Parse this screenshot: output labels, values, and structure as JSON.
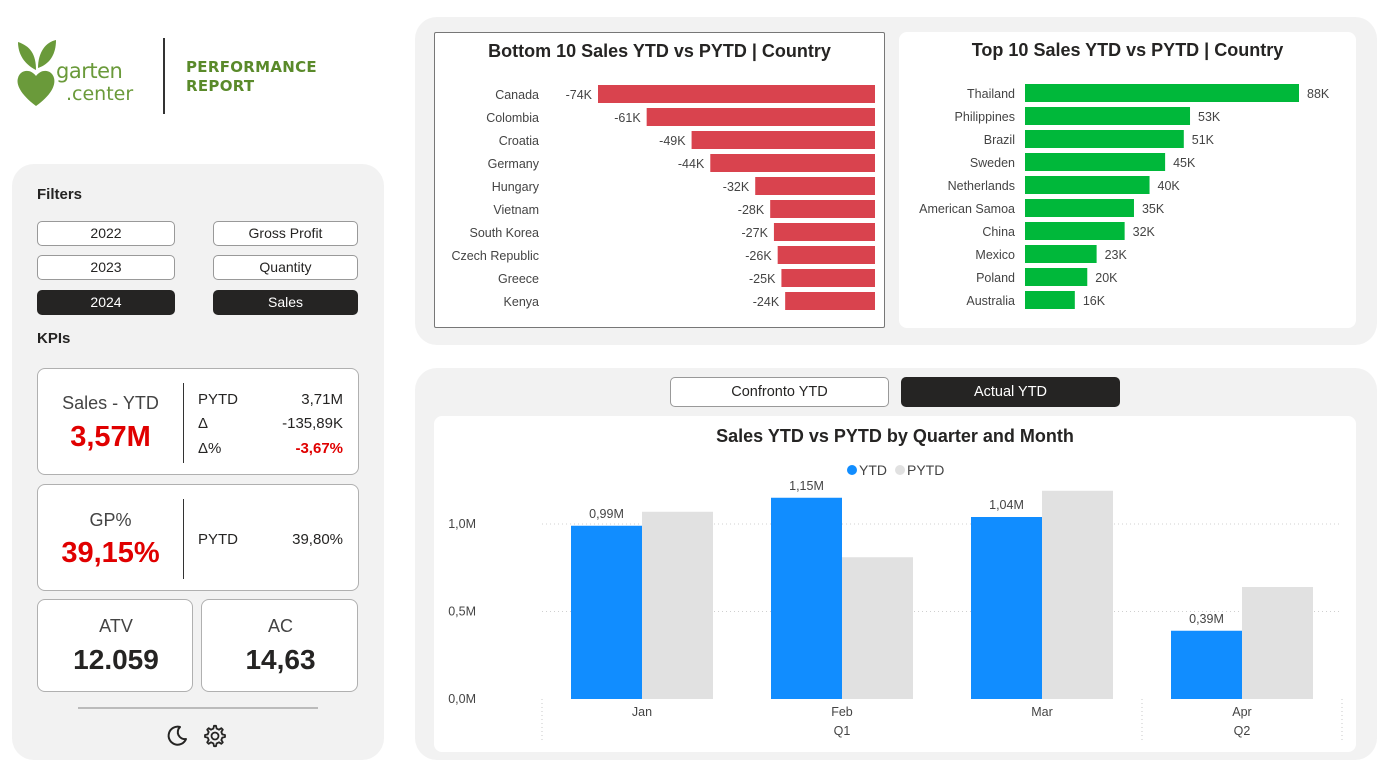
{
  "header": {
    "logo_line1": "garten",
    "logo_line2": ".center",
    "report_title": "PERFORMANCE\nREPORT"
  },
  "filters": {
    "title": "Filters",
    "years": [
      {
        "label": "2022",
        "active": false
      },
      {
        "label": "2023",
        "active": false
      },
      {
        "label": "2024",
        "active": true
      }
    ],
    "measures": [
      {
        "label": "Gross Profit",
        "active": false
      },
      {
        "label": "Quantity",
        "active": false
      },
      {
        "label": "Sales",
        "active": true
      }
    ]
  },
  "kpis": {
    "title": "KPIs",
    "sales": {
      "label": "Sales - YTD",
      "value": "3,57M",
      "pytd_label": "PYTD",
      "pytd_value": "3,71M",
      "delta_label": "Δ",
      "delta_value": "-135,89K",
      "delta_pct_label": "Δ%",
      "delta_pct_value": "-3,67%"
    },
    "gp": {
      "label": "GP%",
      "value": "39,15%",
      "pytd_label": "PYTD",
      "pytd_value": "39,80%"
    },
    "atv": {
      "label": "ATV",
      "value": "12.059"
    },
    "ac": {
      "label": "AC",
      "value": "14,63"
    }
  },
  "footer_icons": [
    "moon-icon",
    "gear-icon"
  ],
  "toggles": {
    "confronto": {
      "label": "Confronto YTD",
      "active": false
    },
    "actual": {
      "label": "Actual YTD",
      "active": true
    }
  },
  "colors": {
    "negative": "#d9434e",
    "positive": "#00b83a",
    "ytd": "#118dff",
    "pytd": "#e1e1e1",
    "kpi_red": "#e00000",
    "brand_green": "#5a8a2a"
  },
  "chart_data": [
    {
      "type": "bar",
      "orientation": "horizontal",
      "title": "Bottom 10 Sales YTD vs PYTD | Country",
      "categories": [
        "Canada",
        "Colombia",
        "Croatia",
        "Germany",
        "Hungary",
        "Vietnam",
        "South Korea",
        "Czech Republic",
        "Greece",
        "Kenya"
      ],
      "values": [
        -74,
        -61,
        -49,
        -44,
        -32,
        -28,
        -27,
        -26,
        -25,
        -24
      ],
      "value_labels": [
        "-74K",
        "-61K",
        "-49K",
        "-44K",
        "-32K",
        "-28K",
        "-27K",
        "-26K",
        "-25K",
        "-24K"
      ],
      "unit": "K"
    },
    {
      "type": "bar",
      "orientation": "horizontal",
      "title": "Top 10 Sales YTD vs PYTD | Country",
      "categories": [
        "Thailand",
        "Philippines",
        "Brazil",
        "Sweden",
        "Netherlands",
        "American Samoa",
        "China",
        "Mexico",
        "Poland",
        "Australia"
      ],
      "values": [
        88,
        53,
        51,
        45,
        40,
        35,
        32,
        23,
        20,
        16
      ],
      "value_labels": [
        "88K",
        "53K",
        "51K",
        "45K",
        "40K",
        "35K",
        "32K",
        "23K",
        "20K",
        "16K"
      ],
      "unit": "K"
    },
    {
      "type": "bar",
      "title": "Sales YTD vs PYTD by Quarter and Month",
      "categories": [
        "Jan",
        "Feb",
        "Mar",
        "Apr"
      ],
      "quarters": [
        {
          "label": "Q1",
          "span": 3
        },
        {
          "label": "Q2",
          "span": 1
        }
      ],
      "series": [
        {
          "name": "YTD",
          "values": [
            0.99,
            1.15,
            1.04,
            0.39
          ],
          "labels": [
            "0,99M",
            "1,15M",
            "1,04M",
            "0,39M"
          ]
        },
        {
          "name": "PYTD",
          "values": [
            1.07,
            0.81,
            1.19,
            0.64
          ]
        }
      ],
      "yticks": [
        {
          "value": 0,
          "label": "0,0M"
        },
        {
          "value": 0.5,
          "label": "0,5M"
        },
        {
          "value": 1.0,
          "label": "1,0M"
        }
      ],
      "ylim": [
        0,
        1.3
      ],
      "legend": "top-center",
      "grid": true
    }
  ]
}
